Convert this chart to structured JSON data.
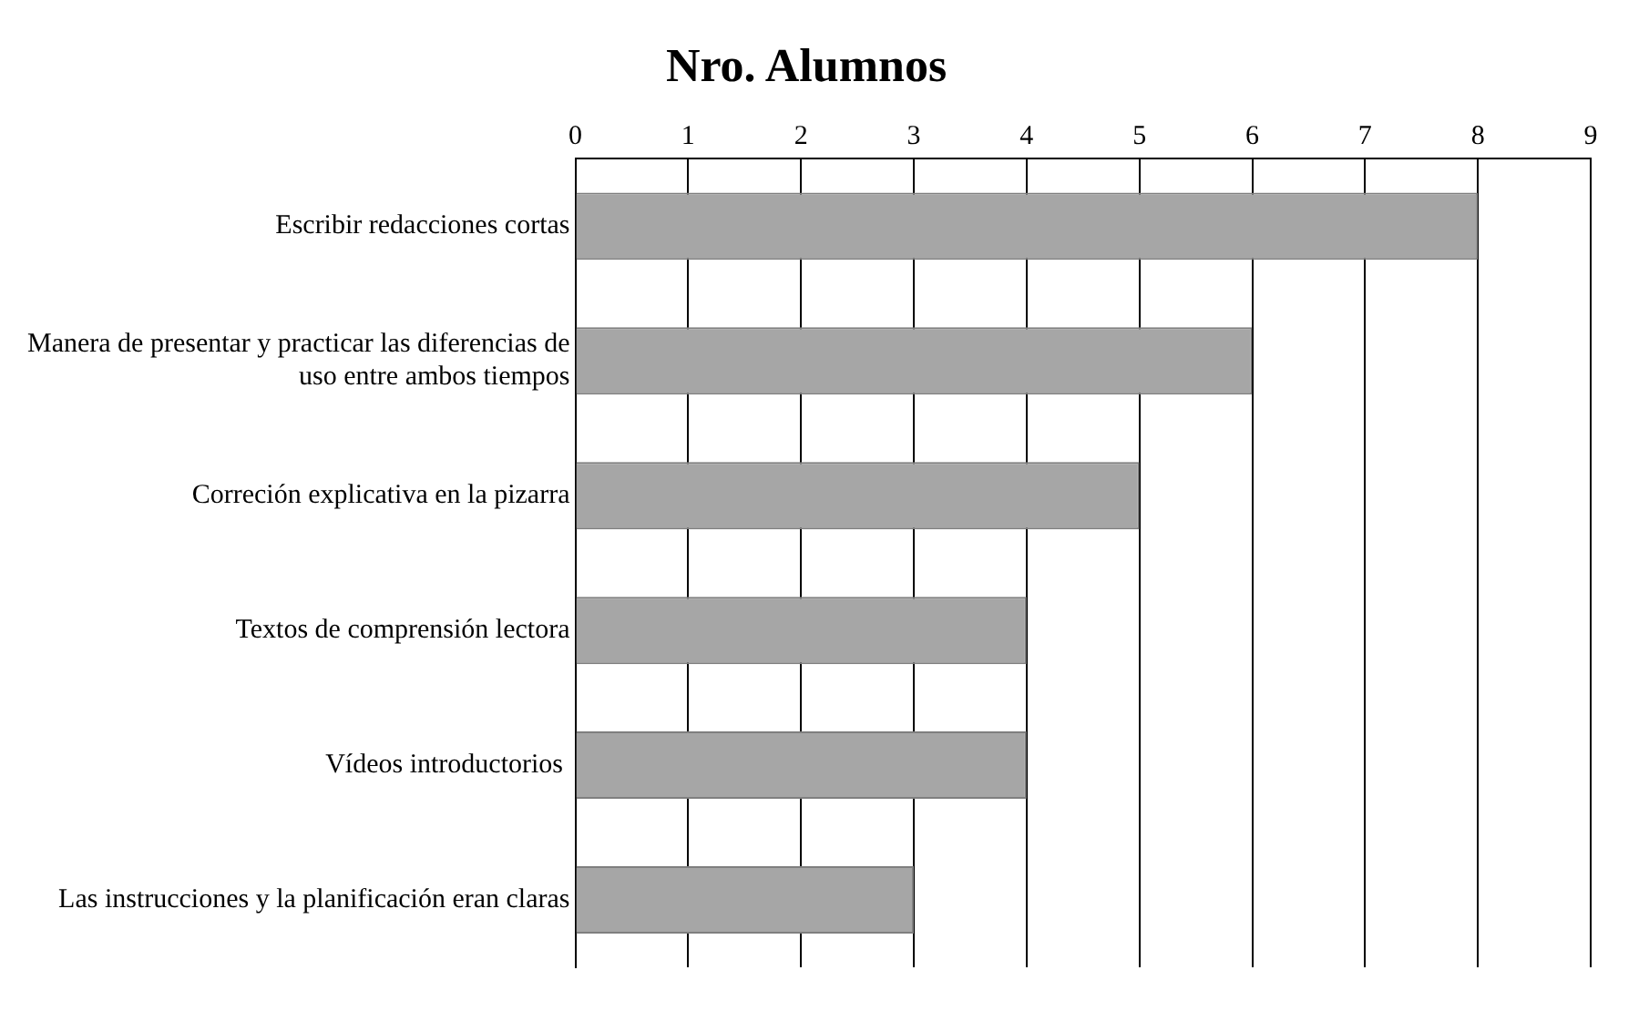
{
  "chart_data": {
    "type": "bar",
    "orientation": "horizontal",
    "title": "Nro. Alumnos",
    "categories": [
      "Escribir redacciones cortas",
      "Manera de presentar y practicar las diferencias de uso entre ambos tiempos",
      "Correción explicativa en la pizarra",
      "Textos de comprensión lectora",
      "Vídeos introductorios ",
      "Las instrucciones y la planificación eran claras"
    ],
    "values": [
      8,
      6,
      5,
      4,
      4,
      3
    ],
    "color": "#a6a6a6",
    "xlim": [
      0,
      9
    ],
    "xticks": [
      0,
      1,
      2,
      3,
      4,
      5,
      6,
      7,
      8,
      9
    ],
    "grid": "x",
    "legend": false
  }
}
